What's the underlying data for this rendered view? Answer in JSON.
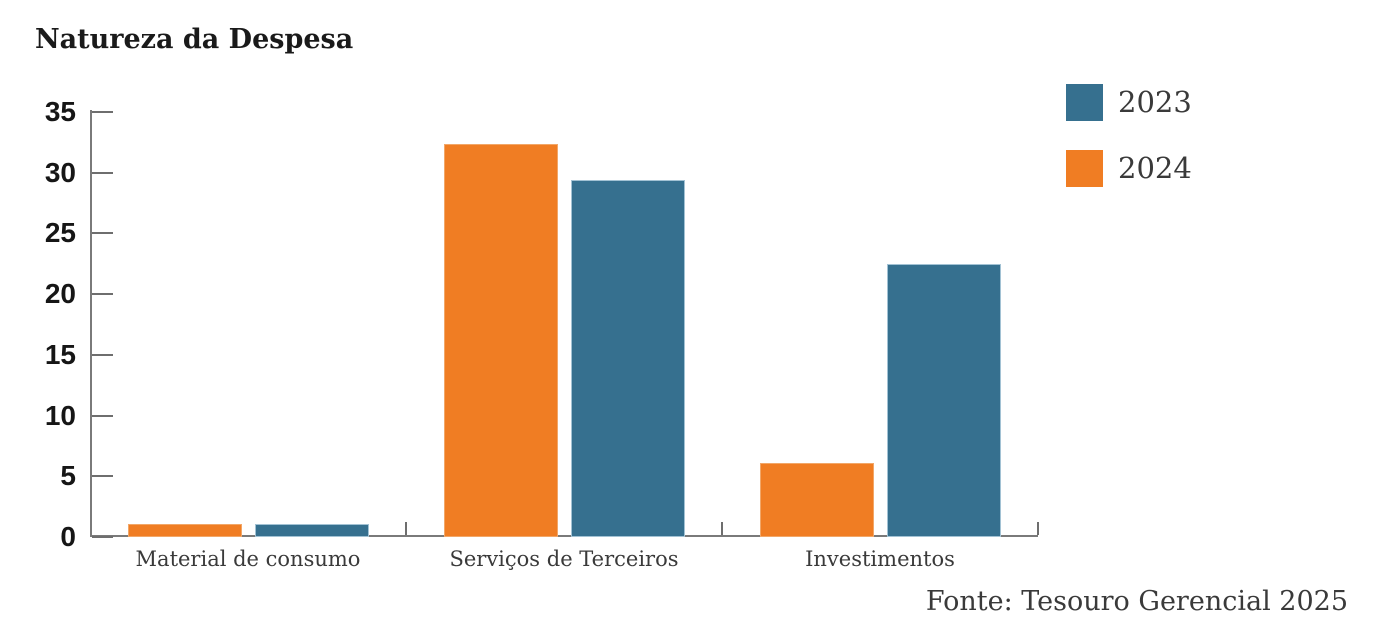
{
  "title": "Natureza da Despesa",
  "source": "Fonte: Tesouro Gerencial 2025",
  "colors": {
    "axis": "#7a7a7a",
    "tick": "#6e6e6e",
    "title_text": "#1a1a1a",
    "label_text": "#3a3a3a",
    "blue_2023": "#36708f",
    "orange_2024": "#f07d23"
  },
  "chart_data": {
    "type": "bar",
    "title": "Natureza da Despesa",
    "categories": [
      "Material de consumo",
      "Serviços de Terceiros",
      "Investimentos"
    ],
    "series": [
      {
        "name": "2023",
        "color": "#36708f",
        "edge_color": "#a2c2d4",
        "values": [
          1.1,
          29.4,
          22.5
        ]
      },
      {
        "name": "2024",
        "color": "#f07d23",
        "edge_color": "#f2a768",
        "values": [
          1.1,
          32.4,
          6.1
        ]
      }
    ],
    "bar_order": [
      "2024",
      "2023"
    ],
    "xlabel": "",
    "ylabel": "",
    "ylim": [
      0,
      35
    ],
    "yticks": [
      0,
      5,
      10,
      15,
      20,
      25,
      30,
      35
    ],
    "grid": false,
    "legend_position": "top-right",
    "source": "Fonte: Tesouro Gerencial 2025"
  }
}
